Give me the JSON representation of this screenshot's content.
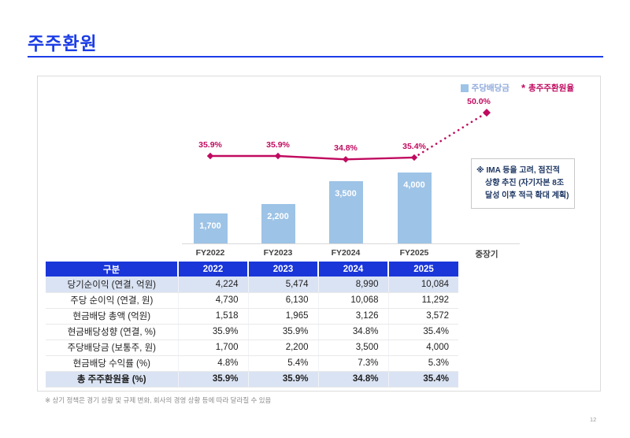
{
  "page": {
    "title": "주주환원",
    "footnote": "※ 상기 정책은 경기 상황 및 규제 변화, 회사의 경영 상황 등에 따라 달라질 수 있음",
    "page_number": "12"
  },
  "colors": {
    "accent_blue": "#1B3DE6",
    "table_header_blue": "#1A36D9",
    "bar_blue": "#9DC3E6",
    "line_magenta": "#C00A5F",
    "shaded_row": "#DAE3F3"
  },
  "chart": {
    "legend": {
      "bar_label": "주당배당금",
      "line_marker": "*",
      "line_label": "총주주환원율"
    },
    "annotation": {
      "line1": "※ IMA 등을 고려, 점진적",
      "line2": "상향 추진 (자기자본 8조",
      "line3": "달성 이후 적극 확대 계획)"
    }
  },
  "chart_data": {
    "type": "combo",
    "categories": [
      "FY2022",
      "FY2023",
      "FY2024",
      "FY2025",
      "중장기"
    ],
    "series": [
      {
        "name": "주당배당금",
        "type": "bar",
        "values": [
          1700,
          2200,
          3500,
          4000,
          null
        ],
        "labels": [
          "1,700",
          "2,200",
          "3,500",
          "4,000"
        ],
        "color": "#9DC3E6"
      },
      {
        "name": "총주주환원율",
        "type": "line",
        "values": [
          35.9,
          35.9,
          34.8,
          35.4,
          50.0
        ],
        "labels": [
          "35.9%",
          "35.9%",
          "34.8%",
          "35.4%",
          "50.0%"
        ],
        "color": "#C00A5F",
        "dotted_from_index": 3
      }
    ],
    "xlabel": "",
    "ylabel": "",
    "grid": false,
    "legend_position": "top-right"
  },
  "table": {
    "header": [
      "구분",
      "2022",
      "2023",
      "2024",
      "2025"
    ],
    "rows": [
      {
        "label": "당기순이익 (연결, 억원)",
        "values": [
          "4,224",
          "5,474",
          "8,990",
          "10,084"
        ],
        "shaded": true,
        "bold": false
      },
      {
        "label": "주당 순이익 (연결, 원)",
        "values": [
          "4,730",
          "6,130",
          "10,068",
          "11,292"
        ],
        "shaded": false,
        "bold": false
      },
      {
        "label": "현금배당 총액 (억원)",
        "values": [
          "1,518",
          "1,965",
          "3,126",
          "3,572"
        ],
        "shaded": false,
        "bold": false
      },
      {
        "label": "현금배당성향 (연결, %)",
        "values": [
          "35.9%",
          "35.9%",
          "34.8%",
          "35.4%"
        ],
        "shaded": false,
        "bold": false
      },
      {
        "label": "주당배당금 (보통주, 원)",
        "values": [
          "1,700",
          "2,200",
          "3,500",
          "4,000"
        ],
        "shaded": false,
        "bold": false
      },
      {
        "label": "현금배당 수익률 (%)",
        "values": [
          "4.8%",
          "5.4%",
          "7.3%",
          "5.3%"
        ],
        "shaded": false,
        "bold": false
      },
      {
        "label": "총 주주환원율 (%)",
        "values": [
          "35.9%",
          "35.9%",
          "34.8%",
          "35.4%"
        ],
        "shaded": true,
        "bold": true
      }
    ]
  }
}
